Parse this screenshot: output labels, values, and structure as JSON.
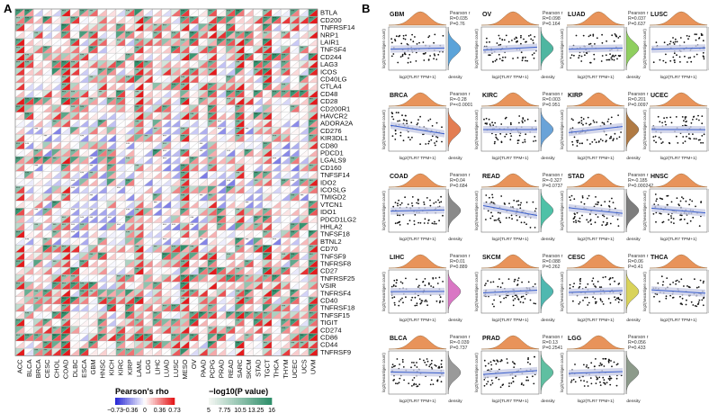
{
  "panels": {
    "a_label": "A",
    "b_label": "B"
  },
  "colors": {
    "neg_strong": "#2b2bd6",
    "neg_light": "#b9b9f0",
    "zero": "#ffffff",
    "pos_light": "#f4a79a",
    "pos_strong": "#e41a1c",
    "p_low": "#eef3ee",
    "p_high": "#2f8f6a",
    "grid_line": "#b5b5b5",
    "scatter_point": "#111111",
    "regression_line": "#3a5fcd",
    "ci_band": "#c9cde6",
    "density_top": "#e8935a"
  },
  "chart_data": [
    {
      "type": "heatmap",
      "title": "",
      "cancers": [
        "ACC",
        "BLCA",
        "BRCA",
        "CESC",
        "CHOL",
        "COAD",
        "DLBC",
        "ESCA",
        "GBM",
        "HNSC",
        "KICH",
        "KIRC",
        "KIRP",
        "LAML",
        "LGG",
        "LIHC",
        "LUAD",
        "LUSC",
        "MESO",
        "OV",
        "PAAD",
        "PCPG",
        "PRAD",
        "READ",
        "SARC",
        "SKCM",
        "STAD",
        "TGCT",
        "THCA",
        "THYM",
        "UCEC",
        "UCS",
        "UVM"
      ],
      "genes": [
        "BTLA",
        "CD200",
        "TNFRSF14",
        "NRP1",
        "LAIR1",
        "TNFSF4",
        "CD244",
        "LAG3",
        "ICOS",
        "CD40LG",
        "CTLA4",
        "CD48",
        "CD28",
        "CD200R1",
        "HAVCR2",
        "ADORA2A",
        "CD276",
        "KIR3DL1",
        "CD80",
        "PDCD1",
        "LGALS9",
        "CD160",
        "TNFSF14",
        "IDO2",
        "ICOSLG",
        "TMIGD2",
        "VTCN1",
        "IDO1",
        "PDCD1LG2",
        "HHLA2",
        "TNFSF18",
        "BTNL2",
        "CD70",
        "TNFSF9",
        "TNFRSF8",
        "CD27",
        "TNFRSF25",
        "VSIR",
        "TNFRSF4",
        "CD40",
        "TNFRSF18",
        "TNFSF15",
        "TIGIT",
        "CD274",
        "CD86",
        "CD44",
        "TNFRSF9"
      ],
      "legend": {
        "rho_title": "Pearson's rho",
        "rho_ticks": [
          "−0.73",
          "−0.36",
          "0",
          "0.36",
          "0.73"
        ],
        "p_title": "−log10(P value)",
        "p_ticks": [
          "5",
          "7.75",
          "10.5",
          "13.25",
          "16"
        ]
      }
    },
    {
      "type": "scatter",
      "xlabel": "log2(TLR7 TPM+1)",
      "ylabel": "log2(Neoantigen count)",
      "density_label": "density",
      "stat_labels": {
        "r": "Pearson r",
        "p": "P"
      },
      "panels": [
        {
          "cancer": "GBM",
          "r": "0.035",
          "p": "0.76"
        },
        {
          "cancer": "OV",
          "r": "0.098",
          "p": "0.164"
        },
        {
          "cancer": "LUAD",
          "r": "0.037",
          "p": "0.637"
        },
        {
          "cancer": "LUSC",
          "r": "0.043",
          "p": "0.573"
        },
        {
          "cancer": "BRCA",
          "r": "-0.28",
          "p": "<0.0001"
        },
        {
          "cancer": "KIRC",
          "r": "0.003",
          "p": "0.951"
        },
        {
          "cancer": "KIRP",
          "r": "0.201",
          "p": "0.0097"
        },
        {
          "cancer": "UCEC",
          "r": "-0.01",
          "p": "0.881"
        },
        {
          "cancer": "COAD",
          "r": "0.04",
          "p": "0.684"
        },
        {
          "cancer": "READ",
          "r": "-0.327",
          "p": "0.0737"
        },
        {
          "cancer": "STAD",
          "r": "-0.185",
          "p": "0.000242"
        },
        {
          "cancer": "HNSC",
          "r": "-0.153",
          "p": "0.0136"
        },
        {
          "cancer": "LIHC",
          "r": "0.01",
          "p": "0.889"
        },
        {
          "cancer": "SKCM",
          "r": "0.088",
          "p": "0.262"
        },
        {
          "cancer": "CESC",
          "r": "0.06",
          "p": "0.41"
        },
        {
          "cancer": "THCA",
          "r": "-0.111",
          "p": "0.0515"
        },
        {
          "cancer": "BLCA",
          "r": "-0.039",
          "p": "0.737"
        },
        {
          "cancer": "PRAD",
          "r": "0.13",
          "p": "0.2541"
        },
        {
          "cancer": "LGG",
          "r": "0.056",
          "p": "0.433"
        }
      ]
    }
  ]
}
